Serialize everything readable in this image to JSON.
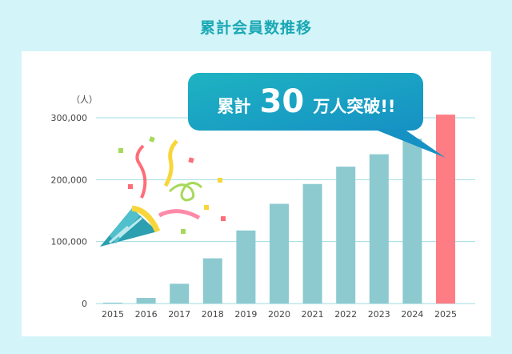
{
  "chart_data": {
    "type": "bar",
    "title": "累計会員数推移",
    "ylabel": "（人）",
    "xlabel": "",
    "categories": [
      "2015",
      "2016",
      "2017",
      "2018",
      "2019",
      "2020",
      "2021",
      "2022",
      "2023",
      "2024",
      "2025"
    ],
    "values": [
      1500,
      9000,
      32000,
      73000,
      118000,
      161000,
      193000,
      221000,
      241000,
      266000,
      305000
    ],
    "ylim": [
      0,
      300000
    ],
    "yticks": [
      0,
      100000,
      200000,
      300000
    ],
    "ytick_labels": [
      "0",
      "100,000",
      "200,000",
      "300,000"
    ],
    "grid": true,
    "colors": {
      "bar": "#8ccad0",
      "highlight": "#fe7d85",
      "grid": "#9fdbe3"
    },
    "highlight_index": 10,
    "callout": {
      "text1": "累計",
      "number": "30",
      "text2": "万人突破!!"
    }
  }
}
